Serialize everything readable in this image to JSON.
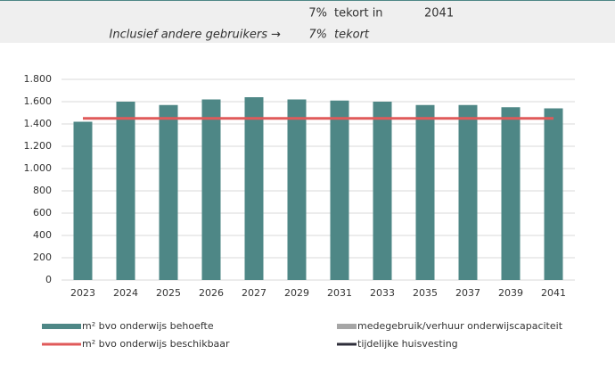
{
  "header": {
    "row1": [
      "7%",
      "tekort in",
      "2041"
    ],
    "row2": [
      "Inclusief andere gebruikers →",
      "7%",
      "tekort"
    ]
  },
  "chart_data": {
    "type": "bar",
    "categories": [
      "2023",
      "2024",
      "2025",
      "2026",
      "2027",
      "2029",
      "2031",
      "2033",
      "2035",
      "2037",
      "2039",
      "2041"
    ],
    "series": [
      {
        "name": "m² bvo onderwijs behoefte",
        "color": "#4e8786",
        "type": "bar",
        "values": [
          1420,
          1600,
          1570,
          1620,
          1640,
          1620,
          1610,
          1600,
          1570,
          1570,
          1550,
          1540
        ]
      },
      {
        "name": "medegebruik/verhuur onderwijscapaciteit",
        "color": "#a6a6a6",
        "type": "bar",
        "values": [
          null,
          null,
          null,
          null,
          null,
          null,
          null,
          null,
          null,
          null,
          null,
          null
        ]
      },
      {
        "name": "m² bvo onderwijs beschikbaar",
        "color": "#e05a5a",
        "type": "line",
        "values": [
          1450,
          1450,
          1450,
          1450,
          1450,
          1450,
          1450,
          1450,
          1450,
          1450,
          1450,
          1450
        ]
      },
      {
        "name": "tijdelijke huisvesting",
        "color": "#2e2e3a",
        "type": "line",
        "values": [
          null,
          null,
          null,
          null,
          null,
          null,
          null,
          null,
          null,
          null,
          null,
          null
        ]
      }
    ],
    "ylim": [
      0,
      1800
    ],
    "yticks": [
      0,
      200,
      400,
      600,
      800,
      {
        "value": 1000,
        "label": "1.000"
      },
      {
        "value": 1200,
        "label": "1.200"
      },
      {
        "value": 1400,
        "label": "1.400"
      },
      {
        "value": 1600,
        "label": "1.600"
      },
      {
        "value": 1800,
        "label": "1.800"
      }
    ],
    "grid": true
  }
}
